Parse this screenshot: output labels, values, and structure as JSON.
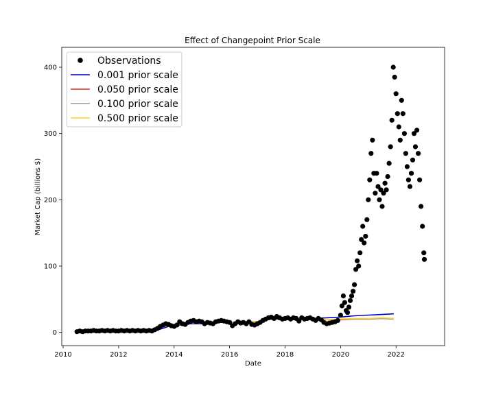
{
  "chart_data": {
    "type": "scatter",
    "title": "Effect of Changepoint Prior Scale",
    "xlabel": "Date",
    "ylabel": "Market Cap (billions $)",
    "xlim": [
      2009.95,
      2023.75
    ],
    "ylim": [
      -20,
      430
    ],
    "x_ticks": [
      2010,
      2012,
      2014,
      2016,
      2018,
      2020,
      2022
    ],
    "y_ticks": [
      0,
      100,
      200,
      300,
      400
    ],
    "grid": false,
    "legend_position": "top-left",
    "observations": {
      "name": "Observations",
      "color": "#000000",
      "points": [
        [
          2010.5,
          1
        ],
        [
          2010.6,
          2
        ],
        [
          2010.7,
          1
        ],
        [
          2010.8,
          2
        ],
        [
          2010.9,
          2
        ],
        [
          2011.0,
          2
        ],
        [
          2011.1,
          3
        ],
        [
          2011.2,
          2
        ],
        [
          2011.3,
          2
        ],
        [
          2011.4,
          3
        ],
        [
          2011.5,
          2
        ],
        [
          2011.6,
          3
        ],
        [
          2011.7,
          2
        ],
        [
          2011.8,
          3
        ],
        [
          2011.9,
          2
        ],
        [
          2012.0,
          2
        ],
        [
          2012.1,
          3
        ],
        [
          2012.2,
          2
        ],
        [
          2012.3,
          3
        ],
        [
          2012.4,
          2
        ],
        [
          2012.5,
          3
        ],
        [
          2012.6,
          2
        ],
        [
          2012.7,
          3
        ],
        [
          2012.8,
          2
        ],
        [
          2012.9,
          3
        ],
        [
          2013.0,
          2
        ],
        [
          2013.1,
          3
        ],
        [
          2013.2,
          2
        ],
        [
          2013.3,
          4
        ],
        [
          2013.4,
          6
        ],
        [
          2013.5,
          9
        ],
        [
          2013.6,
          11
        ],
        [
          2013.7,
          13
        ],
        [
          2013.8,
          12
        ],
        [
          2013.9,
          10
        ],
        [
          2014.0,
          9
        ],
        [
          2014.1,
          11
        ],
        [
          2014.2,
          16
        ],
        [
          2014.3,
          13
        ],
        [
          2014.4,
          12
        ],
        [
          2014.5,
          15
        ],
        [
          2014.6,
          17
        ],
        [
          2014.7,
          18
        ],
        [
          2014.8,
          16
        ],
        [
          2014.9,
          17
        ],
        [
          2015.0,
          16
        ],
        [
          2015.1,
          13
        ],
        [
          2015.2,
          15
        ],
        [
          2015.3,
          14
        ],
        [
          2015.4,
          13
        ],
        [
          2015.5,
          16
        ],
        [
          2015.6,
          17
        ],
        [
          2015.7,
          18
        ],
        [
          2015.8,
          17
        ],
        [
          2015.9,
          16
        ],
        [
          2016.0,
          15
        ],
        [
          2016.1,
          10
        ],
        [
          2016.2,
          13
        ],
        [
          2016.3,
          16
        ],
        [
          2016.4,
          14
        ],
        [
          2016.5,
          15
        ],
        [
          2016.6,
          13
        ],
        [
          2016.7,
          16
        ],
        [
          2016.8,
          12
        ],
        [
          2016.9,
          11
        ],
        [
          2017.0,
          13
        ],
        [
          2017.1,
          15
        ],
        [
          2017.2,
          18
        ],
        [
          2017.3,
          20
        ],
        [
          2017.4,
          22
        ],
        [
          2017.5,
          23
        ],
        [
          2017.6,
          21
        ],
        [
          2017.7,
          24
        ],
        [
          2017.8,
          22
        ],
        [
          2017.9,
          20
        ],
        [
          2018.0,
          21
        ],
        [
          2018.1,
          22
        ],
        [
          2018.2,
          20
        ],
        [
          2018.3,
          22
        ],
        [
          2018.4,
          21
        ],
        [
          2018.5,
          17
        ],
        [
          2018.6,
          22
        ],
        [
          2018.7,
          20
        ],
        [
          2018.8,
          21
        ],
        [
          2018.9,
          22
        ],
        [
          2019.0,
          20
        ],
        [
          2019.1,
          18
        ],
        [
          2019.2,
          21
        ],
        [
          2019.3,
          19
        ],
        [
          2019.4,
          15
        ],
        [
          2019.5,
          13
        ],
        [
          2019.6,
          14
        ],
        [
          2019.7,
          15
        ],
        [
          2019.8,
          16
        ],
        [
          2019.9,
          18
        ],
        [
          2020.0,
          26
        ],
        [
          2020.05,
          40
        ],
        [
          2020.1,
          55
        ],
        [
          2020.15,
          45
        ],
        [
          2020.2,
          33
        ],
        [
          2020.25,
          30
        ],
        [
          2020.3,
          38
        ],
        [
          2020.35,
          48
        ],
        [
          2020.4,
          55
        ],
        [
          2020.45,
          62
        ],
        [
          2020.5,
          72
        ],
        [
          2020.55,
          95
        ],
        [
          2020.6,
          108
        ],
        [
          2020.65,
          100
        ],
        [
          2020.7,
          120
        ],
        [
          2020.75,
          140
        ],
        [
          2020.8,
          160
        ],
        [
          2020.85,
          135
        ],
        [
          2020.9,
          145
        ],
        [
          2020.95,
          170
        ],
        [
          2021.0,
          200
        ],
        [
          2021.05,
          230
        ],
        [
          2021.1,
          270
        ],
        [
          2021.15,
          290
        ],
        [
          2021.2,
          240
        ],
        [
          2021.25,
          210
        ],
        [
          2021.3,
          240
        ],
        [
          2021.35,
          220
        ],
        [
          2021.4,
          200
        ],
        [
          2021.45,
          215
        ],
        [
          2021.5,
          190
        ],
        [
          2021.55,
          210
        ],
        [
          2021.6,
          225
        ],
        [
          2021.65,
          215
        ],
        [
          2021.7,
          235
        ],
        [
          2021.75,
          255
        ],
        [
          2021.8,
          280
        ],
        [
          2021.85,
          320
        ],
        [
          2021.9,
          400
        ],
        [
          2021.95,
          385
        ],
        [
          2022.0,
          360
        ],
        [
          2022.05,
          330
        ],
        [
          2022.1,
          310
        ],
        [
          2022.15,
          290
        ],
        [
          2022.2,
          350
        ],
        [
          2022.25,
          330
        ],
        [
          2022.3,
          300
        ],
        [
          2022.35,
          270
        ],
        [
          2022.4,
          250
        ],
        [
          2022.45,
          230
        ],
        [
          2022.5,
          220
        ],
        [
          2022.55,
          240
        ],
        [
          2022.6,
          260
        ],
        [
          2022.65,
          300
        ],
        [
          2022.7,
          280
        ],
        [
          2022.75,
          305
        ],
        [
          2022.8,
          270
        ],
        [
          2022.85,
          230
        ],
        [
          2022.9,
          190
        ],
        [
          2022.95,
          160
        ],
        [
          2023.0,
          120
        ],
        [
          2023.02,
          110
        ]
      ]
    },
    "series": [
      {
        "name": "0.001 prior scale",
        "color": "#0000cc",
        "points": [
          [
            2010.5,
            1
          ],
          [
            2011.0,
            1
          ],
          [
            2012.0,
            1
          ],
          [
            2013.0,
            1
          ],
          [
            2013.3,
            2
          ],
          [
            2013.8,
            9
          ],
          [
            2014.2,
            11
          ],
          [
            2014.5,
            13
          ],
          [
            2015.0,
            13
          ],
          [
            2015.5,
            15
          ],
          [
            2016.0,
            15
          ],
          [
            2016.5,
            16
          ],
          [
            2017.0,
            16
          ],
          [
            2017.5,
            20
          ],
          [
            2018.0,
            20
          ],
          [
            2018.5,
            21
          ],
          [
            2019.0,
            21
          ],
          [
            2019.5,
            22
          ],
          [
            2020.0,
            23
          ],
          [
            2020.5,
            25
          ],
          [
            2021.0,
            26
          ],
          [
            2021.5,
            27
          ],
          [
            2021.92,
            28
          ]
        ]
      },
      {
        "name": "0.050 prior scale",
        "color": "#e03020",
        "points": [
          [
            2010.5,
            2
          ],
          [
            2011.0,
            2
          ],
          [
            2012.0,
            3
          ],
          [
            2013.0,
            3
          ],
          [
            2013.3,
            4
          ],
          [
            2013.8,
            11
          ],
          [
            2014.2,
            13
          ],
          [
            2014.5,
            15
          ],
          [
            2015.0,
            14
          ],
          [
            2015.5,
            16
          ],
          [
            2016.0,
            15
          ],
          [
            2016.5,
            15
          ],
          [
            2017.0,
            16
          ],
          [
            2017.5,
            21
          ],
          [
            2018.0,
            21
          ],
          [
            2018.5,
            20
          ],
          [
            2019.0,
            20
          ],
          [
            2019.5,
            19
          ],
          [
            2020.0,
            19
          ],
          [
            2020.5,
            20
          ],
          [
            2021.0,
            20
          ],
          [
            2021.5,
            21
          ],
          [
            2021.92,
            20
          ]
        ]
      },
      {
        "name": "0.100 prior scale",
        "color": "#999999",
        "points": [
          [
            2010.5,
            2
          ],
          [
            2011.0,
            2
          ],
          [
            2012.0,
            3
          ],
          [
            2013.0,
            3
          ],
          [
            2013.3,
            4
          ],
          [
            2013.8,
            11
          ],
          [
            2014.2,
            13
          ],
          [
            2014.5,
            15
          ],
          [
            2015.0,
            14
          ],
          [
            2015.5,
            16
          ],
          [
            2016.0,
            15
          ],
          [
            2016.5,
            15
          ],
          [
            2017.0,
            16
          ],
          [
            2017.5,
            21
          ],
          [
            2018.0,
            21
          ],
          [
            2018.5,
            20
          ],
          [
            2019.0,
            20
          ],
          [
            2019.5,
            19
          ],
          [
            2020.0,
            20
          ],
          [
            2020.5,
            20
          ],
          [
            2021.0,
            20
          ],
          [
            2021.5,
            21
          ],
          [
            2021.92,
            20
          ]
        ]
      },
      {
        "name": "0.500 prior scale",
        "color": "#ffd21f",
        "points": [
          [
            2010.5,
            2
          ],
          [
            2011.0,
            2
          ],
          [
            2012.0,
            3
          ],
          [
            2013.0,
            3
          ],
          [
            2013.3,
            4
          ],
          [
            2013.8,
            11
          ],
          [
            2014.2,
            13
          ],
          [
            2014.5,
            15
          ],
          [
            2015.0,
            14
          ],
          [
            2015.5,
            16
          ],
          [
            2016.0,
            15
          ],
          [
            2016.5,
            15
          ],
          [
            2017.0,
            16
          ],
          [
            2017.5,
            21
          ],
          [
            2018.0,
            21
          ],
          [
            2018.5,
            20
          ],
          [
            2019.0,
            20
          ],
          [
            2019.5,
            19
          ],
          [
            2020.0,
            20
          ],
          [
            2020.5,
            21
          ],
          [
            2021.0,
            21
          ],
          [
            2021.5,
            22
          ],
          [
            2021.92,
            21
          ]
        ]
      }
    ]
  }
}
